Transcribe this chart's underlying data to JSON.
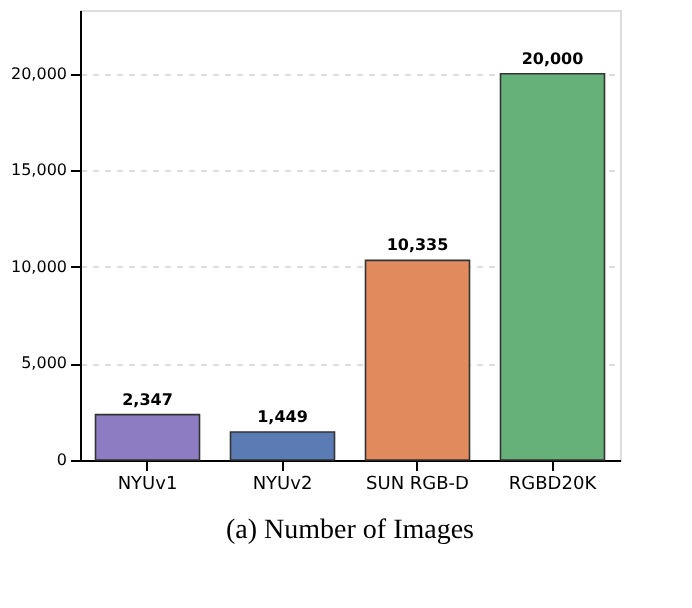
{
  "chart_data": {
    "type": "bar",
    "title": "(a) Number of Images",
    "categories": [
      "NYUv1",
      "NYUv2",
      "SUN RGB-D",
      "RGBD20K"
    ],
    "values": [
      2347,
      1449,
      10335,
      20000
    ],
    "colors": [
      "#8e7cc3",
      "#5b7bb5",
      "#e08a5e",
      "#66b179"
    ],
    "value_labels": [
      "2,347",
      "1,449",
      "10,335",
      "20,000"
    ],
    "ylim": [
      0,
      23300
    ],
    "yticks": [
      0,
      {
        "value": 5000,
        "label": "5,000"
      },
      {
        "value": 10000,
        "label": "10,000"
      },
      {
        "value": 15000,
        "label": "15,000"
      },
      {
        "value": 20000,
        "label": "20,000"
      }
    ],
    "grid": "y"
  }
}
